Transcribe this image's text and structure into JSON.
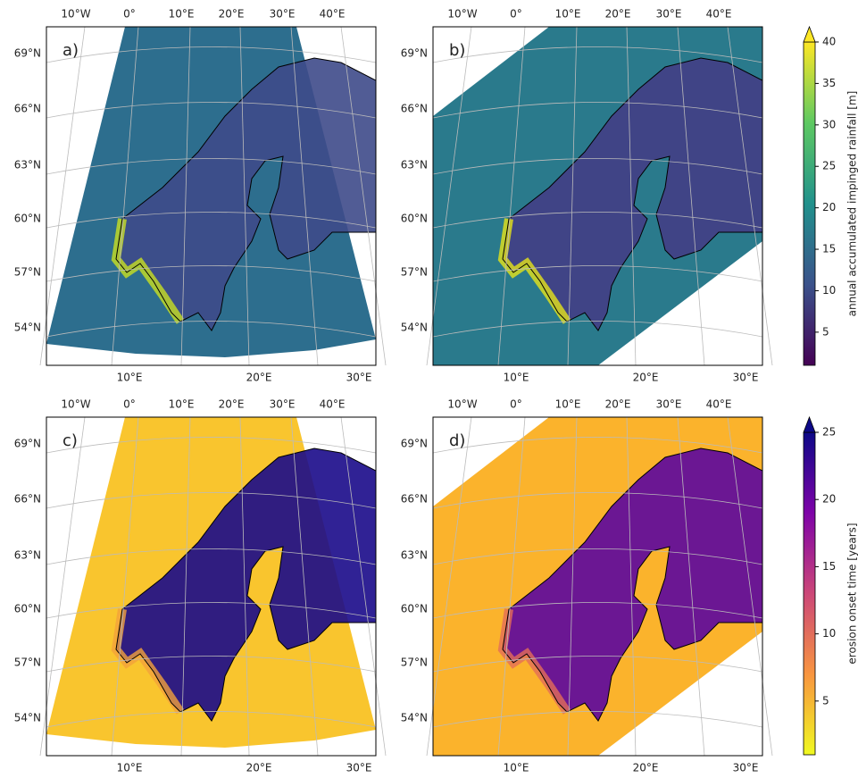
{
  "graticule": {
    "top_lon_labels": [
      "10°W",
      "0°",
      "10°E",
      "20°E",
      "30°E",
      "40°E"
    ],
    "bottom_lon_labels": [
      "10°E",
      "20°E",
      "30°E"
    ],
    "lat_labels": [
      "69°N",
      "66°N",
      "63°N",
      "60°N",
      "57°N",
      "54°N"
    ]
  },
  "panels": [
    {
      "label": "a)"
    },
    {
      "label": "b)"
    },
    {
      "label": "c)"
    },
    {
      "label": "d)"
    }
  ],
  "colorbars": [
    {
      "label": "annual accumulated impinged rainfall [m]",
      "lim": [
        1,
        40
      ],
      "ticks": [
        5,
        10,
        15,
        20,
        25,
        30,
        35,
        40
      ]
    },
    {
      "label": "erosion onset time [years]",
      "lim": [
        1,
        25
      ],
      "ticks": [
        5,
        10,
        15,
        20,
        25
      ]
    }
  ]
}
